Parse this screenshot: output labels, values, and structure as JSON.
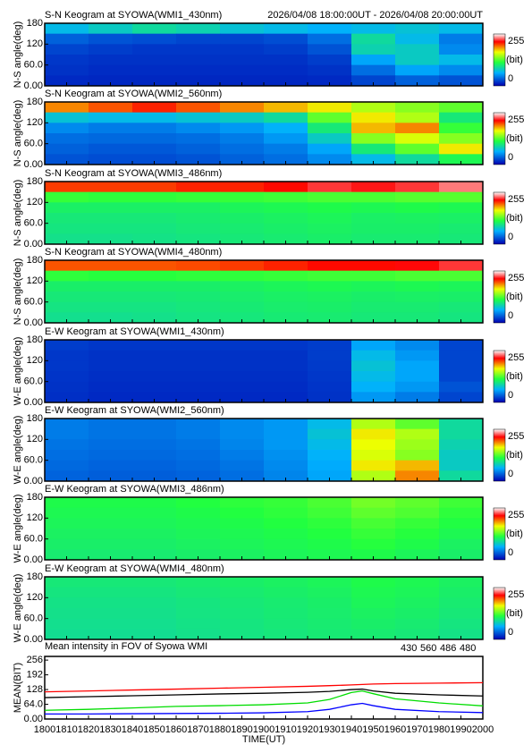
{
  "chart_data": [
    {
      "type": "heatmap",
      "title": "S-N Keogram at SYOWA(WMI1_430nm)",
      "subtitle": "2026/04/08 18:00:00UT - 2026/04/08 20:00:00UT",
      "ylabel": "N-S angle(deg)",
      "ylim": [
        0,
        180
      ],
      "yticks": [
        {
          "value": 0,
          "label": "0.00"
        },
        {
          "value": 60,
          "label": "60.0"
        },
        120,
        180
      ],
      "zlim": [
        0,
        255
      ],
      "zticks": [
        0,
        255
      ],
      "zlabel": "(bit)",
      "z": [
        [
          70,
          80,
          90,
          85,
          75,
          70,
          65,
          70,
          75,
          70
        ],
        [
          35,
          30,
          28,
          25,
          25,
          28,
          40,
          90,
          70,
          45
        ],
        [
          25,
          22,
          20,
          20,
          20,
          22,
          30,
          85,
          80,
          50
        ],
        [
          20,
          18,
          18,
          18,
          18,
          18,
          22,
          60,
          80,
          70
        ],
        [
          18,
          16,
          16,
          16,
          16,
          16,
          18,
          40,
          60,
          50
        ],
        [
          15,
          14,
          14,
          14,
          14,
          14,
          15,
          25,
          35,
          30
        ]
      ]
    },
    {
      "type": "heatmap",
      "title": "S-N Keogram at SYOWA(WMI2_560nm)",
      "ylabel": "N-S angle(deg)",
      "ylim": [
        0,
        180
      ],
      "yticks": [
        {
          "value": 0,
          "label": "0.00"
        },
        {
          "value": 60,
          "label": "60.0"
        },
        120,
        180
      ],
      "zlim": [
        0,
        255
      ],
      "zticks": [
        0,
        255
      ],
      "zlabel": "(bit)",
      "z": [
        [
          190,
          200,
          210,
          200,
          190,
          180,
          170,
          150,
          140,
          130
        ],
        [
          75,
          70,
          70,
          75,
          80,
          90,
          130,
          170,
          150,
          100
        ],
        [
          50,
          45,
          45,
          50,
          55,
          65,
          100,
          180,
          190,
          120
        ],
        [
          40,
          38,
          38,
          40,
          45,
          55,
          80,
          140,
          160,
          140
        ],
        [
          35,
          32,
          32,
          35,
          40,
          45,
          60,
          100,
          130,
          170
        ],
        [
          30,
          28,
          28,
          30,
          35,
          40,
          50,
          70,
          90,
          110
        ]
      ]
    },
    {
      "type": "heatmap",
      "title": "S-N Keogram at SYOWA(WMI3_486nm)",
      "ylabel": "N-S angle(deg)",
      "ylim": [
        0,
        180
      ],
      "yticks": [
        {
          "value": 0,
          "label": "0.00"
        },
        {
          "value": 60,
          "label": "60.0"
        },
        120,
        180
      ],
      "zlim": [
        0,
        255
      ],
      "zticks": [
        0,
        255
      ],
      "zlabel": "(bit)",
      "z": [
        [
          205,
          205,
          205,
          210,
          210,
          215,
          225,
          220,
          225,
          235
        ],
        [
          120,
          118,
          118,
          120,
          120,
          122,
          125,
          125,
          128,
          128
        ],
        [
          105,
          105,
          105,
          105,
          108,
          110,
          112,
          110,
          112,
          110
        ],
        [
          100,
          100,
          100,
          102,
          104,
          106,
          108,
          105,
          106,
          105
        ],
        [
          98,
          98,
          98,
          100,
          102,
          104,
          106,
          104,
          104,
          102
        ],
        [
          95,
          95,
          96,
          98,
          100,
          102,
          104,
          102,
          102,
          100
        ]
      ]
    },
    {
      "type": "heatmap",
      "title": "S-N Keogram at SYOWA(WMI4_480nm)",
      "ylabel": "N-S angle(deg)",
      "ylim": [
        0,
        180
      ],
      "yticks": [
        {
          "value": 0,
          "label": "0.00"
        },
        {
          "value": 60,
          "label": "60.0"
        },
        120,
        180
      ],
      "zlim": [
        0,
        255
      ],
      "zticks": [
        0,
        255
      ],
      "zlabel": "(bit)",
      "z": [
        [
          200,
          200,
          200,
          202,
          205,
          210,
          215,
          215,
          218,
          225
        ],
        [
          118,
          116,
          116,
          118,
          118,
          120,
          122,
          122,
          125,
          125
        ],
        [
          104,
          104,
          104,
          104,
          106,
          108,
          110,
          108,
          110,
          108
        ],
        [
          100,
          100,
          100,
          101,
          103,
          105,
          106,
          104,
          105,
          104
        ],
        [
          97,
          97,
          97,
          99,
          101,
          103,
          104,
          102,
          102,
          100
        ],
        [
          94,
          94,
          95,
          97,
          99,
          101,
          102,
          100,
          100,
          98
        ]
      ]
    },
    {
      "type": "heatmap",
      "title": "E-W Keogram at SYOWA(WMI1_430nm)",
      "ylabel": "W-E angle(deg)",
      "ylim": [
        0,
        180
      ],
      "yticks": [
        {
          "value": 0,
          "label": "0.00"
        },
        {
          "value": 60,
          "label": "60.0"
        },
        120,
        180
      ],
      "zlim": [
        0,
        255
      ],
      "zticks": [
        0,
        255
      ],
      "zlabel": "(bit)",
      "z": [
        [
          22,
          20,
          20,
          20,
          20,
          20,
          22,
          60,
          50,
          25
        ],
        [
          20,
          18,
          18,
          18,
          18,
          18,
          22,
          70,
          55,
          25
        ],
        [
          20,
          18,
          18,
          18,
          18,
          18,
          21,
          75,
          60,
          25
        ],
        [
          19,
          17,
          17,
          17,
          17,
          17,
          20,
          70,
          60,
          25
        ],
        [
          18,
          16,
          16,
          16,
          16,
          16,
          19,
          65,
          55,
          30
        ],
        [
          17,
          15,
          15,
          15,
          15,
          15,
          18,
          55,
          45,
          25
        ]
      ]
    },
    {
      "type": "heatmap",
      "title": "E-W Keogram at SYOWA(WMI2_560nm)",
      "ylabel": "W-E angle(deg)",
      "ylim": [
        0,
        180
      ],
      "yticks": [
        {
          "value": 0,
          "label": "0.00"
        },
        {
          "value": 60,
          "label": "60.0"
        },
        120,
        180
      ],
      "zlim": [
        0,
        255
      ],
      "zticks": [
        0,
        255
      ],
      "zlabel": "(bit)",
      "z": [
        [
          45,
          42,
          42,
          45,
          50,
          55,
          70,
          150,
          130,
          90
        ],
        [
          45,
          42,
          42,
          45,
          50,
          55,
          75,
          170,
          150,
          90
        ],
        [
          42,
          40,
          40,
          42,
          48,
          55,
          70,
          165,
          145,
          85
        ],
        [
          40,
          38,
          38,
          40,
          45,
          52,
          65,
          160,
          140,
          80
        ],
        [
          38,
          36,
          36,
          38,
          42,
          50,
          62,
          170,
          180,
          80
        ],
        [
          36,
          34,
          34,
          36,
          40,
          48,
          60,
          150,
          190,
          90
        ]
      ]
    },
    {
      "type": "heatmap",
      "title": "E-W Keogram at SYOWA(WMI3_486nm)",
      "ylabel": "W-E angle(deg)",
      "ylim": [
        0,
        180
      ],
      "yticks": [
        {
          "value": 0,
          "label": "0.00"
        },
        {
          "value": 60,
          "label": "60.0"
        },
        120,
        180
      ],
      "zlim": [
        0,
        255
      ],
      "zticks": [
        0,
        255
      ],
      "zlabel": "(bit)",
      "z": [
        [
          112,
          112,
          112,
          115,
          118,
          120,
          125,
          135,
          130,
          122
        ],
        [
          110,
          110,
          110,
          112,
          115,
          118,
          122,
          130,
          126,
          118
        ],
        [
          108,
          108,
          108,
          110,
          112,
          115,
          118,
          124,
          120,
          114
        ],
        [
          106,
          106,
          106,
          108,
          110,
          112,
          115,
          120,
          116,
          110
        ],
        [
          104,
          104,
          104,
          106,
          108,
          110,
          112,
          116,
          112,
          106
        ],
        [
          102,
          102,
          102,
          104,
          106,
          108,
          110,
          112,
          108,
          104
        ]
      ]
    },
    {
      "type": "heatmap",
      "title": "E-W Keogram at SYOWA(WMI4_480nm)",
      "ylabel": "W-E angle(deg)",
      "ylim": [
        0,
        180
      ],
      "yticks": [
        {
          "value": 0,
          "label": "0.00"
        },
        {
          "value": 60,
          "label": "60.0"
        },
        120,
        180
      ],
      "zlim": [
        0,
        255
      ],
      "zticks": [
        0,
        255
      ],
      "zlabel": "(bit)",
      "z": [
        [
          100,
          100,
          100,
          102,
          104,
          106,
          108,
          112,
          110,
          106
        ],
        [
          98,
          98,
          98,
          100,
          102,
          104,
          106,
          110,
          108,
          104
        ],
        [
          96,
          96,
          96,
          98,
          100,
          102,
          104,
          108,
          106,
          102
        ],
        [
          95,
          95,
          95,
          97,
          99,
          101,
          103,
          106,
          104,
          100
        ],
        [
          94,
          94,
          94,
          96,
          98,
          100,
          102,
          104,
          102,
          98
        ],
        [
          93,
          93,
          93,
          95,
          97,
          99,
          101,
          102,
          100,
          96
        ]
      ]
    },
    {
      "type": "line",
      "title": "Mean intensity in FOV of Syowa WMI",
      "xlabel": "TIME(UT)",
      "ylabel": "MEAN(BIT)",
      "x": [
        1800,
        1820,
        1840,
        1860,
        1880,
        1900,
        1920,
        1930,
        1940,
        1945,
        1950,
        1960,
        1980,
        2000
      ],
      "series": [
        {
          "name": "430",
          "color": "#0000ff",
          "values": [
            22,
            22,
            23,
            24,
            25,
            27,
            32,
            42,
            62,
            68,
            58,
            42,
            32,
            28
          ]
        },
        {
          "name": "560",
          "color": "#00dd00",
          "values": [
            38,
            42,
            48,
            55,
            58,
            62,
            70,
            85,
            115,
            122,
            110,
            88,
            70,
            57
          ]
        },
        {
          "name": "486",
          "color": "#ff0000",
          "values": [
            118,
            122,
            126,
            130,
            134,
            138,
            142,
            145,
            148,
            150,
            152,
            154,
            156,
            158
          ]
        },
        {
          "name": "480",
          "color": "#000000",
          "values": [
            93,
            97,
            101,
            105,
            109,
            112,
            116,
            120,
            128,
            130,
            122,
            112,
            105,
            100
          ]
        }
      ],
      "xlim": [
        1800,
        2000
      ],
      "xticks": [
        1800,
        1810,
        1820,
        1830,
        1840,
        1850,
        1860,
        1870,
        1880,
        1890,
        1900,
        1910,
        1920,
        1930,
        1940,
        1950,
        1960,
        1970,
        1980,
        1990,
        2000
      ],
      "ylim": [
        0,
        272
      ],
      "yticks": [
        {
          "value": 0,
          "label": "0.00"
        },
        {
          "value": 64,
          "label": "64.0"
        },
        128,
        192,
        256
      ]
    }
  ]
}
